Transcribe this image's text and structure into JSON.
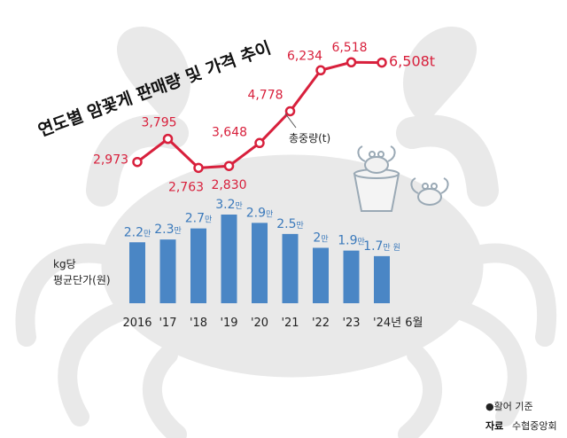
{
  "title": "연도별 암꽃게 판매량 및 가격 추이",
  "note": "●활어 기준",
  "source_label": "자료",
  "source_value": "수협중앙회",
  "colors": {
    "line": "#d8203c",
    "bar": "#4a86c5",
    "bar_label": "#3a79bb",
    "text": "#222222",
    "background_art": "#e9e9e9"
  },
  "chart_data": [
    {
      "type": "line",
      "series": [
        {
          "name": "총중량(t)",
          "values": [
            2973,
            3795,
            2763,
            2830,
            3648,
            4778,
            6234,
            6518,
            6508
          ]
        }
      ],
      "value_labels": [
        "2,973",
        "3,795",
        "2,763",
        "2,830",
        "3,648",
        "4,778",
        "6,234",
        "6,518",
        "6,508t"
      ],
      "categories": [
        "2016",
        "'17",
        "'18",
        "'19",
        "'20",
        "'21",
        "'22",
        "'23",
        "'24년 6월"
      ],
      "series_label": "총중량(t)"
    },
    {
      "type": "bar",
      "series": [
        {
          "name": "kg당 평균단가(원)",
          "values": [
            22000,
            23000,
            27000,
            32000,
            29000,
            25000,
            20000,
            19000,
            17000
          ]
        }
      ],
      "value_labels": [
        {
          "num": "2.2",
          "unit": "만"
        },
        {
          "num": "2.3",
          "unit": "만"
        },
        {
          "num": "2.7",
          "unit": "만"
        },
        {
          "num": "3.2",
          "unit": "만"
        },
        {
          "num": "2.9",
          "unit": "만"
        },
        {
          "num": "2.5",
          "unit": "만"
        },
        {
          "num": "2",
          "unit": "만"
        },
        {
          "num": "1.9",
          "unit": "만"
        },
        {
          "num": "1.7",
          "unit": "만 원"
        }
      ],
      "categories": [
        "2016",
        "'17",
        "'18",
        "'19",
        "'20",
        "'21",
        "'22",
        "'23",
        "'24년 6월"
      ],
      "axis_label_line1": "kg당",
      "axis_label_line2": "평균단가(원)"
    }
  ]
}
